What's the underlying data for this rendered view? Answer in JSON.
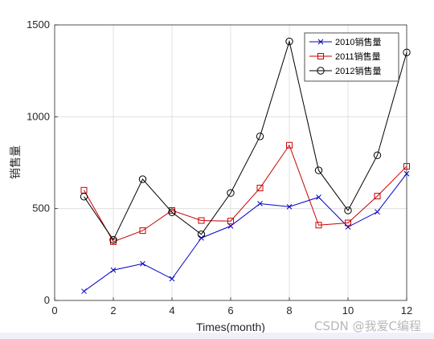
{
  "chart_data": {
    "type": "line",
    "x": [
      1,
      2,
      3,
      4,
      5,
      6,
      7,
      8,
      9,
      10,
      11,
      12
    ],
    "xlim": [
      0,
      12
    ],
    "ylim": [
      0,
      1500
    ],
    "xticks": [
      0,
      2,
      4,
      6,
      8,
      10,
      12
    ],
    "yticks": [
      0,
      500,
      1000,
      1500
    ],
    "xlabel": "Times(month)",
    "ylabel": "销售量",
    "grid": true,
    "legend_position": "top-right",
    "series": [
      {
        "name": "2010销售量",
        "color": "#0000c8",
        "marker": "x",
        "values": [
          50,
          165,
          200,
          118,
          340,
          405,
          527,
          510,
          562,
          400,
          482,
          690
        ]
      },
      {
        "name": "2011销售量",
        "color": "#c80000",
        "marker": "square",
        "values": [
          600,
          320,
          380,
          490,
          435,
          432,
          612,
          845,
          410,
          422,
          568,
          730
        ]
      },
      {
        "name": "2012销售量",
        "color": "#000000",
        "marker": "circle",
        "values": [
          565,
          330,
          660,
          480,
          360,
          585,
          893,
          1410,
          708,
          490,
          790,
          1350
        ]
      }
    ]
  },
  "watermark": "CSDN @我爱C编程"
}
